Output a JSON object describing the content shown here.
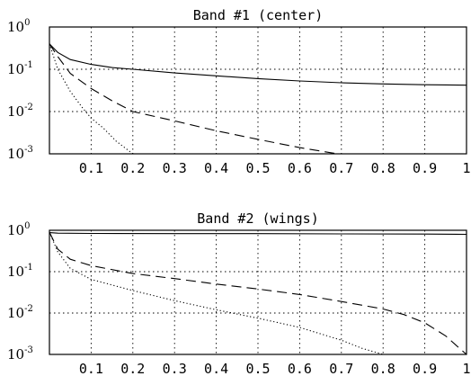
{
  "chart_data": [
    {
      "type": "line",
      "title": "Band #1 (center)",
      "xlim": [
        0,
        1
      ],
      "ylim": [
        0.001,
        1
      ],
      "yscale": "log",
      "grid": true,
      "xticks": [
        "0.1",
        "0.2",
        "0.3",
        "0.4",
        "0.5",
        "0.6",
        "0.7",
        "0.8",
        "0.9",
        "1"
      ],
      "ytick_labels": [
        {
          "base": "10",
          "exp": "0",
          "value": 1
        },
        {
          "base": "10",
          "exp": "-1",
          "value": 0.1
        },
        {
          "base": "10",
          "exp": "-2",
          "value": 0.01
        },
        {
          "base": "10",
          "exp": "-3",
          "value": 0.001
        }
      ],
      "series": [
        {
          "style": "solid",
          "color": "#000000",
          "x": [
            0,
            0.02,
            0.05,
            0.1,
            0.15,
            0.2,
            0.3,
            0.4,
            0.5,
            0.6,
            0.7,
            0.8,
            0.9,
            1.0
          ],
          "y": [
            0.4,
            0.25,
            0.17,
            0.13,
            0.11,
            0.1,
            0.082,
            0.07,
            0.06,
            0.053,
            0.048,
            0.045,
            0.043,
            0.042
          ]
        },
        {
          "style": "dashed",
          "color": "#000000",
          "x": [
            0,
            0.02,
            0.05,
            0.1,
            0.15,
            0.2,
            0.3,
            0.4,
            0.5,
            0.6,
            0.69
          ],
          "y": [
            0.4,
            0.2,
            0.08,
            0.035,
            0.018,
            0.01,
            0.006,
            0.0035,
            0.0022,
            0.0014,
            0.001
          ]
        },
        {
          "style": "dotted",
          "color": "#000000",
          "x": [
            0,
            0.02,
            0.05,
            0.08,
            0.1,
            0.13,
            0.16,
            0.2
          ],
          "y": [
            0.4,
            0.1,
            0.03,
            0.012,
            0.007,
            0.004,
            0.002,
            0.001
          ]
        }
      ]
    },
    {
      "type": "line",
      "title": "Band #2 (wings)",
      "xlim": [
        0,
        1
      ],
      "ylim": [
        0.001,
        1
      ],
      "yscale": "log",
      "grid": true,
      "xticks": [
        "0.1",
        "0.2",
        "0.3",
        "0.4",
        "0.5",
        "0.6",
        "0.7",
        "0.8",
        "0.9",
        "1"
      ],
      "ytick_labels": [
        {
          "base": "10",
          "exp": "0",
          "value": 1
        },
        {
          "base": "10",
          "exp": "-1",
          "value": 0.1
        },
        {
          "base": "10",
          "exp": "-2",
          "value": 0.01
        },
        {
          "base": "10",
          "exp": "-3",
          "value": 0.001
        }
      ],
      "series": [
        {
          "style": "solid",
          "color": "#000000",
          "x": [
            0,
            0.02,
            0.1,
            0.3,
            0.5,
            0.7,
            0.9,
            1.0
          ],
          "y": [
            0.88,
            0.85,
            0.84,
            0.83,
            0.83,
            0.82,
            0.81,
            0.8
          ]
        },
        {
          "style": "dashed",
          "color": "#000000",
          "x": [
            0,
            0.02,
            0.05,
            0.1,
            0.2,
            0.3,
            0.4,
            0.5,
            0.6,
            0.7,
            0.8,
            0.85,
            0.9,
            0.95,
            0.98,
            1.0
          ],
          "y": [
            0.9,
            0.35,
            0.2,
            0.14,
            0.09,
            0.068,
            0.05,
            0.038,
            0.028,
            0.019,
            0.0125,
            0.0092,
            0.0058,
            0.0028,
            0.0015,
            0.001
          ]
        },
        {
          "style": "dotted",
          "color": "#000000",
          "x": [
            0,
            0.02,
            0.05,
            0.1,
            0.2,
            0.3,
            0.4,
            0.5,
            0.6,
            0.7,
            0.75,
            0.8
          ],
          "y": [
            0.9,
            0.3,
            0.12,
            0.065,
            0.035,
            0.02,
            0.012,
            0.0075,
            0.0045,
            0.0022,
            0.0014,
            0.001
          ]
        }
      ]
    }
  ]
}
